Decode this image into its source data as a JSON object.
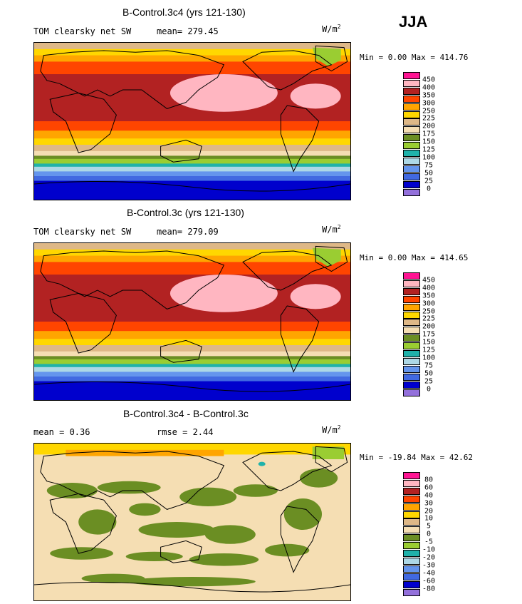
{
  "season": "JJA",
  "units_base": "W/m",
  "units_exp": "2",
  "panels": [
    {
      "title": "B-Control.3c4 (yrs 121-130)",
      "left_text": "TOM clearsky net SW",
      "stat_text": "mean= 279.45",
      "min_text": "Min =   0.00 Max = 414.76"
    },
    {
      "title": "B-Control.3c (yrs 121-130)",
      "left_text": "TOM clearsky net SW",
      "stat_text": "mean= 279.09",
      "min_text": "Min =   0.00 Max = 414.65"
    },
    {
      "title": "B-Control.3c4 - B-Control.3c",
      "left_text": "mean =   0.36",
      "stat_text": "rmse =   2.44",
      "min_text": "Min = -19.84 Max =  42.62"
    }
  ],
  "chart_data": [
    {
      "type": "heatmap",
      "title": "B-Control.3c4 (yrs 121-130)",
      "variable": "TOM clearsky net SW",
      "season": "JJA",
      "mean": 279.45,
      "min": 0.0,
      "max": 414.76,
      "levels": [
        0,
        25,
        50,
        75,
        100,
        125,
        150,
        175,
        200,
        225,
        250,
        300,
        350,
        400,
        450
      ],
      "colors": [
        "#9370db",
        "#0000cd",
        "#4169e1",
        "#6495ed",
        "#add8e6",
        "#20b2aa",
        "#9acd32",
        "#6b8e23",
        "#f5deb3",
        "#deb887",
        "#ffd700",
        "#ffa500",
        "#ff4500",
        "#b22222",
        "#ffb6c1",
        "#ff1493"
      ]
    },
    {
      "type": "heatmap",
      "title": "B-Control.3c (yrs 121-130)",
      "variable": "TOM clearsky net SW",
      "season": "JJA",
      "mean": 279.09,
      "min": 0.0,
      "max": 414.65,
      "levels": [
        0,
        25,
        50,
        75,
        100,
        125,
        150,
        175,
        200,
        225,
        250,
        300,
        350,
        400,
        450
      ],
      "colors": [
        "#9370db",
        "#0000cd",
        "#4169e1",
        "#6495ed",
        "#add8e6",
        "#20b2aa",
        "#9acd32",
        "#6b8e23",
        "#f5deb3",
        "#deb887",
        "#ffd700",
        "#ffa500",
        "#ff4500",
        "#b22222",
        "#ffb6c1",
        "#ff1493"
      ]
    },
    {
      "type": "heatmap",
      "title": "B-Control.3c4 - B-Control.3c",
      "season": "JJA",
      "mean": 0.36,
      "rmse": 2.44,
      "min": -19.84,
      "max": 42.62,
      "levels": [
        -80,
        -60,
        -40,
        -30,
        -20,
        -10,
        -5,
        0,
        5,
        10,
        20,
        30,
        40,
        60,
        80
      ],
      "colors": [
        "#9370db",
        "#0000cd",
        "#4169e1",
        "#6495ed",
        "#add8e6",
        "#20b2aa",
        "#9acd32",
        "#6b8e23",
        "#f5deb3",
        "#deb887",
        "#ffd700",
        "#ffa500",
        "#ff4500",
        "#b22222",
        "#ffb6c1",
        "#ff1493"
      ]
    }
  ]
}
